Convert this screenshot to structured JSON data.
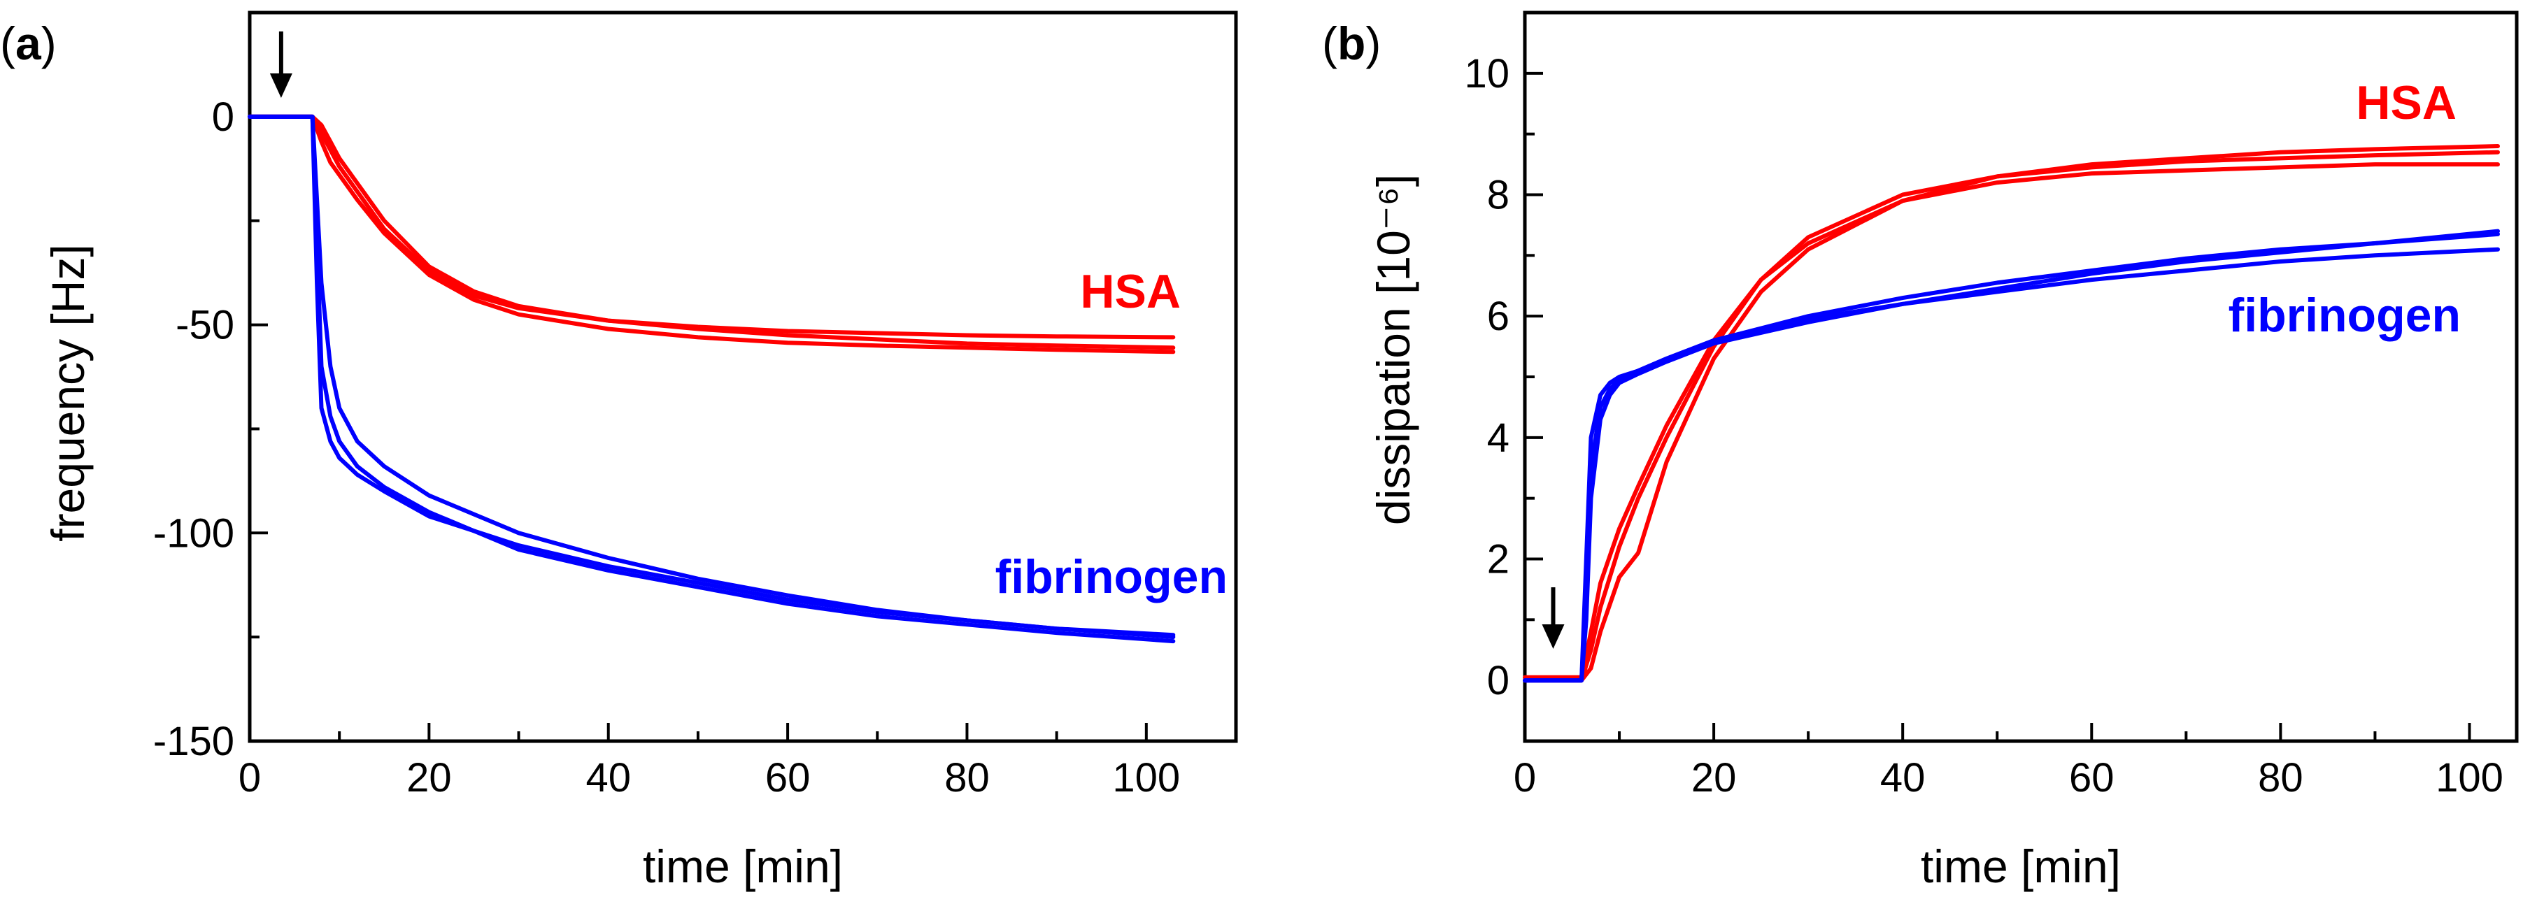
{
  "chart_data": [
    {
      "type": "line",
      "panel_label": "a",
      "xlabel": "time [min]",
      "ylabel": "frequency [Hz]",
      "xlim": [
        0,
        110
      ],
      "ylim": [
        -150,
        25
      ],
      "xticks": [
        0,
        20,
        40,
        60,
        80,
        100
      ],
      "yticks": [
        0,
        -50,
        -100,
        -150
      ],
      "injection_arrow_time": 3.5,
      "series": [
        {
          "name": "HSA",
          "color": "#ff0000",
          "replicates": 3,
          "x": [
            0,
            7,
            8,
            9,
            10,
            12,
            15,
            20,
            25,
            30,
            40,
            50,
            60,
            70,
            80,
            90,
            103
          ],
          "y": [
            [
              0,
              0,
              -4,
              -8,
              -12,
              -18,
              -27,
              -37,
              -43,
              -46,
              -49,
              -50.5,
              -51.5,
              -52,
              -52.5,
              -52.8,
              -53
            ],
            [
              0,
              0,
              -2,
              -6,
              -10,
              -16,
              -25,
              -36,
              -42,
              -45.5,
              -49,
              -51,
              -52.5,
              -53.5,
              -54.5,
              -55,
              -55.5
            ],
            [
              0,
              0,
              -6,
              -11,
              -14,
              -20,
              -28,
              -38,
              -44,
              -47.5,
              -51,
              -53,
              -54.3,
              -55,
              -55.5,
              -56,
              -56.5
            ]
          ]
        },
        {
          "name": "fibrinogen",
          "color": "#0000ff",
          "replicates": 3,
          "x": [
            0,
            7,
            7.5,
            8,
            9,
            10,
            12,
            15,
            20,
            30,
            40,
            50,
            60,
            70,
            80,
            90,
            103
          ],
          "y": [
            [
              0,
              0,
              -40,
              -70,
              -78,
              -82,
              -86,
              -90,
              -96,
              -103,
              -108,
              -112,
              -116,
              -119,
              -121,
              -123,
              -125
            ],
            [
              0,
              0,
              -30,
              -60,
              -72,
              -78,
              -84,
              -89,
              -95,
              -104,
              -109,
              -113,
              -117,
              -120,
              -122,
              -124,
              -126
            ],
            [
              0,
              0,
              -20,
              -40,
              -60,
              -70,
              -78,
              -84,
              -91,
              -100,
              -106,
              -111,
              -115,
              -118.5,
              -121,
              -123,
              -124.5
            ]
          ]
        }
      ]
    },
    {
      "type": "line",
      "panel_label": "b",
      "xlabel": "time [min]",
      "ylabel": "dissipation [10⁻⁶]",
      "xlim": [
        0,
        105
      ],
      "ylim": [
        -1,
        11
      ],
      "xticks": [
        0,
        20,
        40,
        60,
        80,
        100
      ],
      "yticks": [
        0,
        2,
        4,
        6,
        8,
        10
      ],
      "injection_arrow_time": 3,
      "series": [
        {
          "name": "HSA",
          "color": "#ff0000",
          "replicates": 3,
          "x": [
            0,
            6,
            7,
            8,
            10,
            12,
            15,
            20,
            25,
            30,
            40,
            50,
            60,
            70,
            80,
            90,
            103
          ],
          "y": [
            [
              0.05,
              0.05,
              0.8,
              1.6,
              2.5,
              3.2,
              4.2,
              5.6,
              6.6,
              7.2,
              7.9,
              8.2,
              8.35,
              8.4,
              8.45,
              8.5,
              8.5
            ],
            [
              0,
              0,
              0.5,
              1.2,
              2.2,
              3.0,
              4.0,
              5.5,
              6.6,
              7.3,
              8.0,
              8.3,
              8.45,
              8.55,
              8.6,
              8.65,
              8.7
            ],
            [
              0,
              0,
              0.2,
              0.8,
              1.7,
              2.1,
              3.6,
              5.3,
              6.4,
              7.1,
              7.9,
              8.3,
              8.5,
              8.6,
              8.7,
              8.75,
              8.8
            ]
          ]
        },
        {
          "name": "fibrinogen",
          "color": "#0000ff",
          "replicates": 3,
          "x": [
            0,
            6,
            6.5,
            7,
            8,
            9,
            10,
            12,
            15,
            20,
            30,
            40,
            50,
            60,
            70,
            80,
            90,
            103
          ],
          "y": [
            [
              0,
              0,
              2.0,
              4.0,
              4.7,
              4.9,
              5.0,
              5.1,
              5.3,
              5.6,
              5.95,
              6.2,
              6.4,
              6.6,
              6.75,
              6.9,
              7.0,
              7.1
            ],
            [
              0,
              0,
              1.5,
              3.5,
              4.5,
              4.8,
              4.95,
              5.1,
              5.3,
              5.6,
              6.0,
              6.3,
              6.55,
              6.75,
              6.95,
              7.1,
              7.2,
              7.35
            ],
            [
              0,
              0,
              1.0,
              3.0,
              4.3,
              4.7,
              4.9,
              5.05,
              5.25,
              5.55,
              5.9,
              6.2,
              6.45,
              6.7,
              6.9,
              7.05,
              7.2,
              7.4
            ]
          ]
        }
      ]
    }
  ]
}
